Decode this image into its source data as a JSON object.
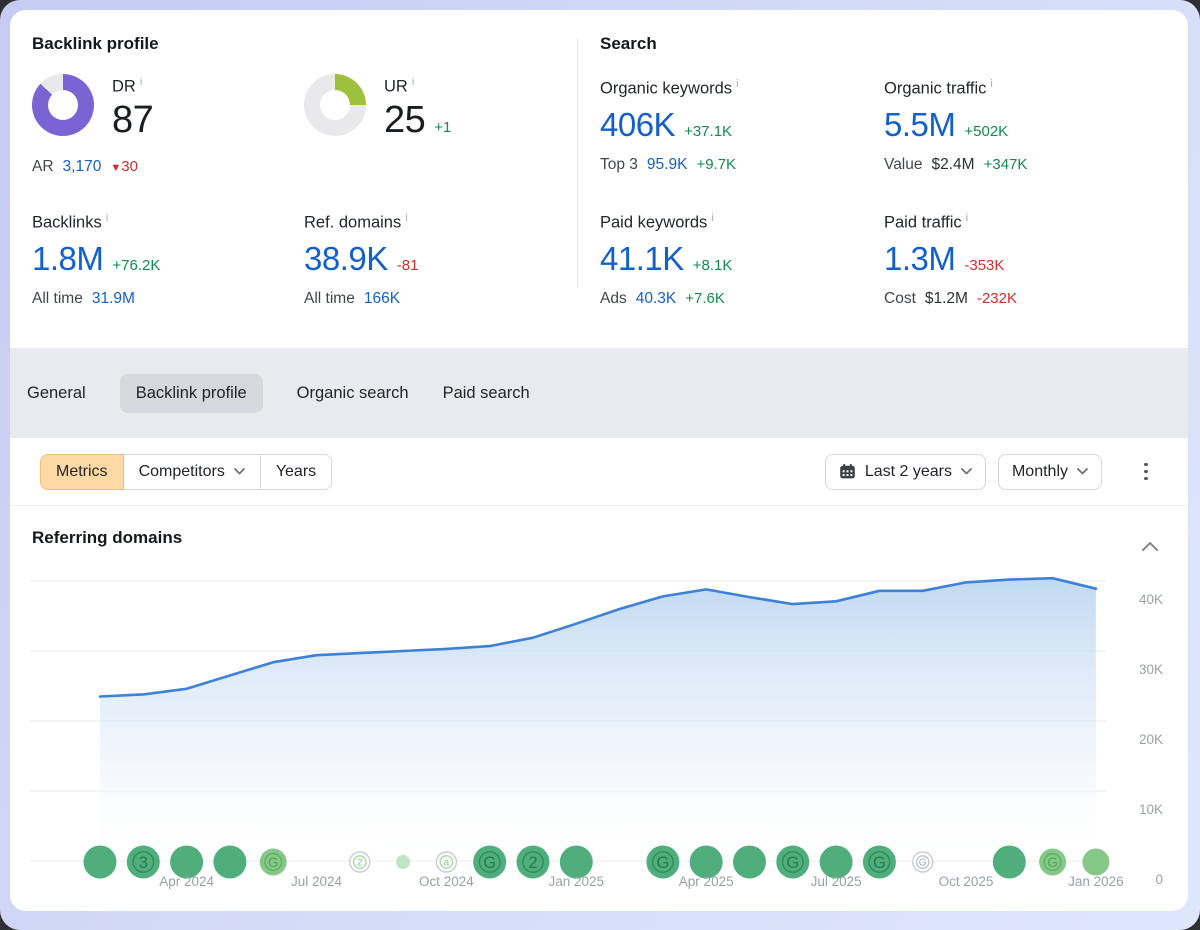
{
  "backlink_profile": {
    "title": "Backlink profile",
    "dr": {
      "label": "DR",
      "value": "87",
      "percent": 87,
      "color": "#7a63d2",
      "sub_label": "AR",
      "sub_value": "3,170",
      "sub_delta": "30"
    },
    "ur": {
      "label": "UR",
      "value": "25",
      "delta": "+1",
      "percent": 25,
      "color": "#9dc13d"
    },
    "backlinks": {
      "label": "Backlinks",
      "value": "1.8M",
      "delta": "+76.2K",
      "sub_label": "All time",
      "sub_value": "31.9M",
      "sub_delta": ""
    },
    "ref_domains": {
      "label": "Ref. domains",
      "value": "38.9K",
      "delta": "-81",
      "sub_label": "All time",
      "sub_value": "166K",
      "sub_delta": ""
    }
  },
  "search": {
    "title": "Search",
    "organic_keywords": {
      "label": "Organic keywords",
      "value": "406K",
      "delta": "+37.1K",
      "sub_label": "Top 3",
      "sub_value": "95.9K",
      "sub_delta": "+9.7K"
    },
    "organic_traffic": {
      "label": "Organic traffic",
      "value": "5.5M",
      "delta": "+502K",
      "sub_label": "Value",
      "sub_value": "$2.4M",
      "sub_delta": "+347K"
    },
    "paid_keywords": {
      "label": "Paid keywords",
      "value": "41.1K",
      "delta": "+8.1K",
      "sub_label": "Ads",
      "sub_value": "40.3K",
      "sub_delta": "+7.6K"
    },
    "paid_traffic": {
      "label": "Paid traffic",
      "value": "1.3M",
      "delta": "-353K",
      "sub_label": "Cost",
      "sub_value": "$1.2M",
      "sub_delta": "-232K"
    }
  },
  "tabs": [
    {
      "label": "General",
      "active": false
    },
    {
      "label": "Backlink profile",
      "active": true
    },
    {
      "label": "Organic search",
      "active": false
    },
    {
      "label": "Paid search",
      "active": false
    }
  ],
  "controls": {
    "segments": [
      {
        "label": "Metrics",
        "active": true,
        "dropdown": false
      },
      {
        "label": "Competitors",
        "active": false,
        "dropdown": true
      },
      {
        "label": "Years",
        "active": false,
        "dropdown": false
      }
    ],
    "period": "Last 2 years",
    "granularity": "Monthly"
  },
  "chart": {
    "heading": "Referring domains",
    "chart_data": {
      "type": "area",
      "title": "Referring domains",
      "x": [
        "Feb 2024",
        "Mar 2024",
        "Apr 2024",
        "May 2024",
        "Jun 2024",
        "Jul 2024",
        "Aug 2024",
        "Sep 2024",
        "Oct 2024",
        "Nov 2024",
        "Dec 2024",
        "Jan 2025",
        "Feb 2025",
        "Mar 2025",
        "Apr 2025",
        "May 2025",
        "Jun 2025",
        "Jul 2025",
        "Aug 2025",
        "Sep 2025",
        "Oct 2025",
        "Nov 2025",
        "Dec 2025",
        "Jan 2026"
      ],
      "values": [
        23.5,
        23.8,
        24.6,
        26.5,
        28.4,
        29.4,
        29.7,
        30.0,
        30.3,
        30.7,
        31.9,
        33.9,
        36.0,
        37.8,
        38.8,
        37.7,
        36.7,
        37.1,
        38.6,
        38.6,
        39.8,
        40.2,
        40.4,
        38.9
      ],
      "unit": "K",
      "ylim": [
        0,
        43
      ],
      "yticks": [
        {
          "v": 40,
          "label": "40K"
        },
        {
          "v": 30,
          "label": "30K"
        },
        {
          "v": 20,
          "label": "20K"
        },
        {
          "v": 10,
          "label": "10K"
        },
        {
          "v": 0,
          "label": "0"
        }
      ],
      "xtick_idx": [
        2,
        5,
        8,
        11,
        14,
        17,
        20,
        23
      ],
      "xticks": [
        "Apr 2024",
        "Jul 2024",
        "Oct 2024",
        "Jan 2025",
        "Apr 2025",
        "Jul 2025",
        "Oct 2025",
        "Jan 2026"
      ],
      "line_color": "#3e81d6",
      "fill_from": "#b5d2ef",
      "grid": true,
      "legend": "none",
      "events": [
        {
          "i": 0,
          "size": "lg",
          "tone": "dark",
          "glyph": ""
        },
        {
          "i": 1,
          "size": "lg",
          "tone": "dark",
          "glyph": "3"
        },
        {
          "i": 2,
          "size": "lg",
          "tone": "dark",
          "glyph": ""
        },
        {
          "i": 3,
          "size": "lg",
          "tone": "dark",
          "glyph": ""
        },
        {
          "i": 4,
          "size": "md",
          "tone": "light",
          "glyph": "G"
        },
        {
          "i": 6,
          "size": "sm",
          "tone": "outline",
          "glyph": "2"
        },
        {
          "i": 7,
          "size": "xs",
          "tone": "pale",
          "glyph": ""
        },
        {
          "i": 8,
          "size": "sm",
          "tone": "outline",
          "glyph": "a"
        },
        {
          "i": 9,
          "size": "lg",
          "tone": "dark",
          "glyph": "G"
        },
        {
          "i": 10,
          "size": "lg",
          "tone": "dark",
          "glyph": "2"
        },
        {
          "i": 11,
          "size": "lg",
          "tone": "dark",
          "glyph": ""
        },
        {
          "i": 13,
          "size": "lg",
          "tone": "dark",
          "glyph": "G"
        },
        {
          "i": 14,
          "size": "lg",
          "tone": "dark",
          "glyph": ""
        },
        {
          "i": 15,
          "size": "lg",
          "tone": "dark",
          "glyph": ""
        },
        {
          "i": 16,
          "size": "lg",
          "tone": "dark",
          "glyph": "G"
        },
        {
          "i": 17,
          "size": "lg",
          "tone": "dark",
          "glyph": ""
        },
        {
          "i": 18,
          "size": "lg",
          "tone": "dark",
          "glyph": "G"
        },
        {
          "i": 19,
          "size": "sm",
          "tone": "outline-gray",
          "glyph": "G"
        },
        {
          "i": 21,
          "size": "lg",
          "tone": "dark",
          "glyph": ""
        },
        {
          "i": 22,
          "size": "md",
          "tone": "light",
          "glyph": "G"
        },
        {
          "i": 23,
          "size": "md",
          "tone": "light",
          "glyph": ""
        }
      ]
    }
  },
  "colors": {
    "blue": "#1360cc",
    "green": "#0e8c4d",
    "red": "#d22d2d"
  }
}
